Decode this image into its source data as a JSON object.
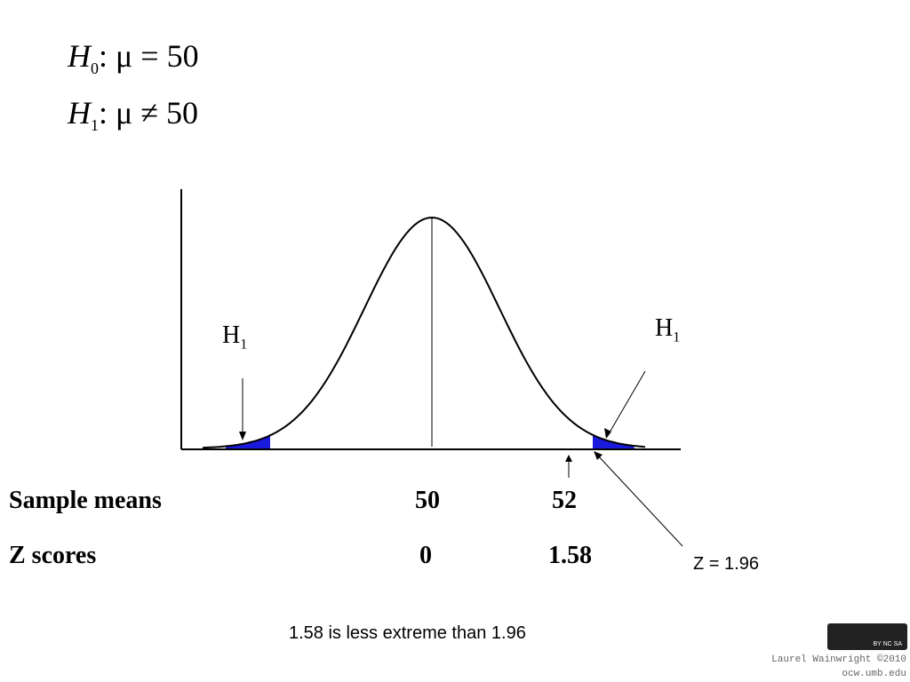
{
  "hypotheses": [
    {
      "symbol": "H",
      "subscript": "0",
      "statement": ": μ = 50"
    },
    {
      "symbol": "H",
      "subscript": "1",
      "statement": ": μ ≠ 50"
    }
  ],
  "diagram": {
    "left_label": {
      "symbol": "H",
      "subscript": "1"
    },
    "right_label": {
      "symbol": "H",
      "subscript": "1"
    },
    "critical_label": "Z = 1.96"
  },
  "table": {
    "rows": [
      [
        "Sample means",
        "50",
        "52"
      ],
      [
        "Z scores",
        "0",
        "1.58"
      ]
    ]
  },
  "conclusion": "1.58 is less extreme than 1.96",
  "footer": {
    "badge": "BY NC SA",
    "credit": "Laurel Wainwright ©2010",
    "site": "ocw.umb.edu"
  }
}
